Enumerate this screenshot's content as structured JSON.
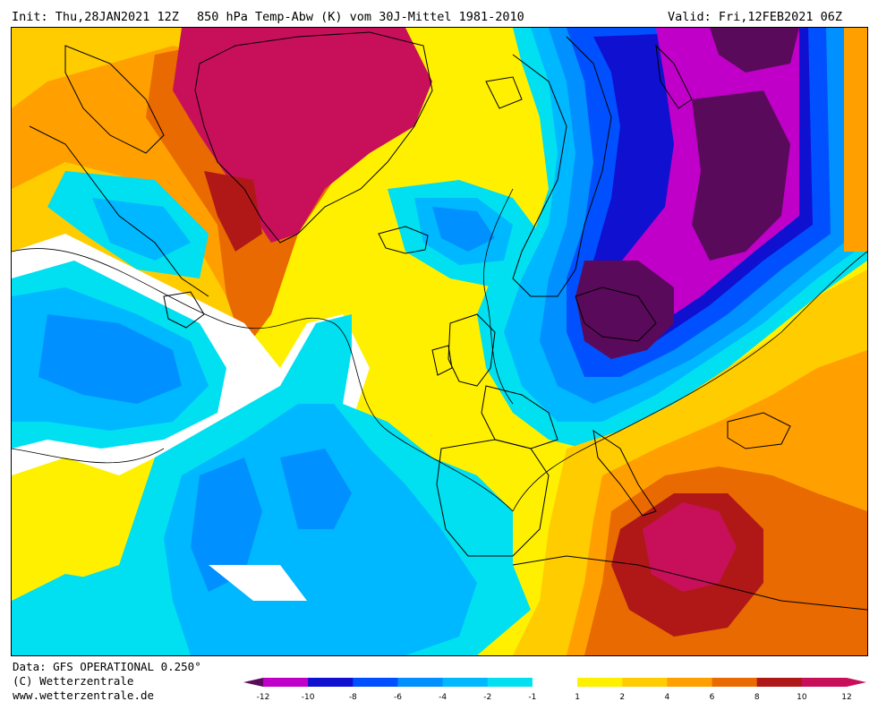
{
  "header": {
    "init_label": "Init: Thu,28JAN2021 12Z",
    "title": "850 hPa Temp-Abw (K) vom 30J-Mittel 1981-2010",
    "valid_label": "Valid: Fri,12FEB2021 06Z"
  },
  "footer": {
    "data_source": "Data: GFS OPERATIONAL 0.250°",
    "copyright": "(C) Wetterzentrale",
    "website": "www.wetterzentrale.de"
  },
  "legend": {
    "tick_labels": [
      "-12",
      "-10",
      "-8",
      "-6",
      "-4",
      "-2",
      "-1",
      "1",
      "2",
      "4",
      "6",
      "8",
      "10",
      "12"
    ],
    "colors": [
      "#5a0a5a",
      "#c000c8",
      "#1010d0",
      "#0050ff",
      "#0090ff",
      "#00b8ff",
      "#00e0f0",
      "#ffffff",
      "#fff000",
      "#ffcc00",
      "#ffa000",
      "#e86a00",
      "#b01818",
      "#c8105a",
      "#c8105a"
    ]
  },
  "palette": {
    "deep_purple": "#5a0a5a",
    "magenta": "#c000c8",
    "dark_blue": "#1010d0",
    "blue": "#0050ff",
    "mid_blue": "#0090ff",
    "light_blue": "#00b8ff",
    "cyan": "#00e0f0",
    "white": "#ffffff",
    "yellow": "#fff000",
    "gold": "#ffcc00",
    "orange": "#ffa000",
    "dark_orange": "#e86a00",
    "red": "#b01818",
    "crimson": "#c8105a"
  }
}
